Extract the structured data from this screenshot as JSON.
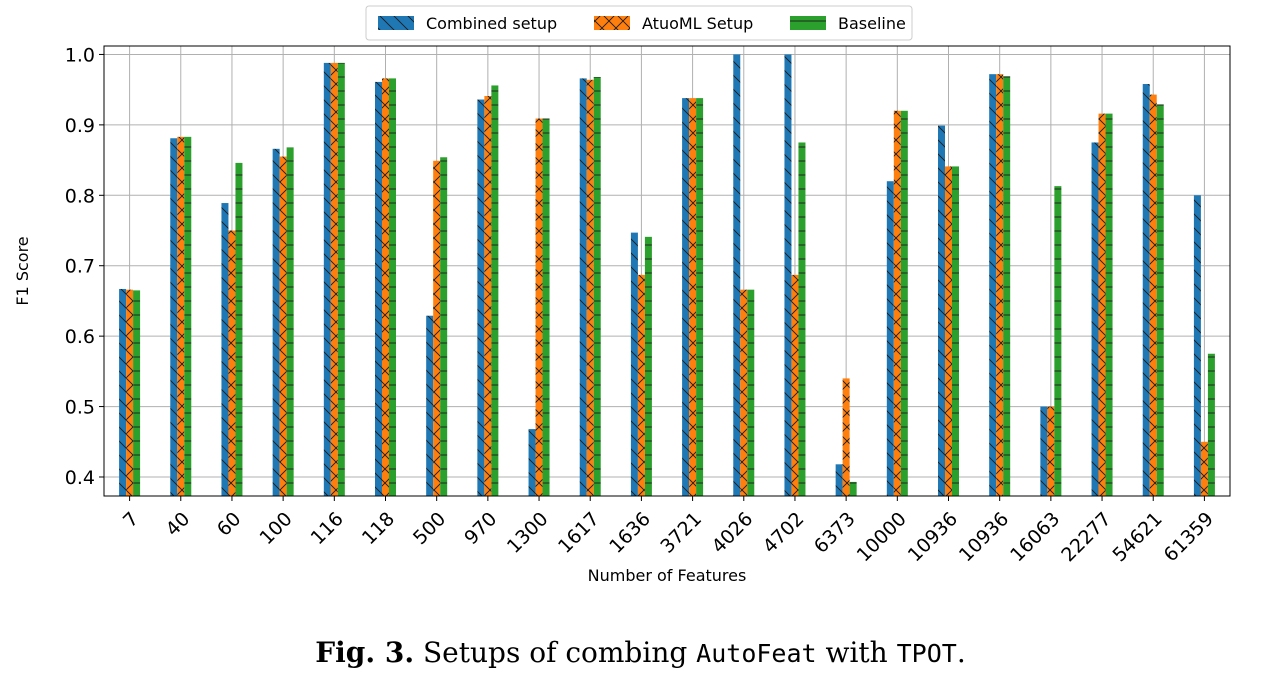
{
  "chart_data": {
    "type": "bar",
    "xlabel": "Number of Features",
    "ylabel": "F1 Score",
    "ylim": [
      0.373,
      1.012
    ],
    "yticks": [
      "0.4",
      "0.5",
      "0.6",
      "0.7",
      "0.8",
      "0.9",
      "1.0"
    ],
    "grid": true,
    "legend_position": "top-center",
    "categories": [
      "7",
      "40",
      "60",
      "100",
      "116",
      "118",
      "500",
      "970",
      "1300",
      "1617",
      "1636",
      "3721",
      "4026",
      "4702",
      "6373",
      "10000",
      "10936",
      "10936",
      "16063",
      "22277",
      "54621",
      "61359"
    ],
    "series": [
      {
        "name": "Combined setup",
        "color": "#1f77b4",
        "hatch": "backslash",
        "values": [
          0.667,
          0.881,
          0.789,
          0.866,
          0.988,
          0.961,
          0.629,
          0.936,
          0.468,
          0.966,
          0.747,
          0.938,
          1.0,
          1.0,
          0.418,
          0.82,
          0.899,
          0.972,
          0.5,
          0.875,
          0.958,
          0.8
        ]
      },
      {
        "name": "AtuoML Setup",
        "color": "#ff7f0e",
        "hatch": "cross",
        "values": [
          0.666,
          0.883,
          0.75,
          0.855,
          0.988,
          0.966,
          0.849,
          0.941,
          0.909,
          0.964,
          0.687,
          0.938,
          0.666,
          0.687,
          0.54,
          0.92,
          0.841,
          0.972,
          0.5,
          0.916,
          0.943,
          0.45
        ]
      },
      {
        "name": "Baseline",
        "color": "#2ca02c",
        "hatch": "horizontal",
        "values": [
          0.665,
          0.883,
          0.846,
          0.868,
          0.988,
          0.966,
          0.854,
          0.956,
          0.909,
          0.968,
          0.741,
          0.938,
          0.666,
          0.875,
          0.393,
          0.92,
          0.841,
          0.969,
          0.813,
          0.916,
          0.929,
          0.575
        ]
      }
    ]
  },
  "caption": {
    "fig_label": "Fig. 3.",
    "text_1": " Setups of combing ",
    "code_1": "AutoFeat",
    "text_2": " with ",
    "code_2": "TPOT",
    "text_3": "."
  }
}
